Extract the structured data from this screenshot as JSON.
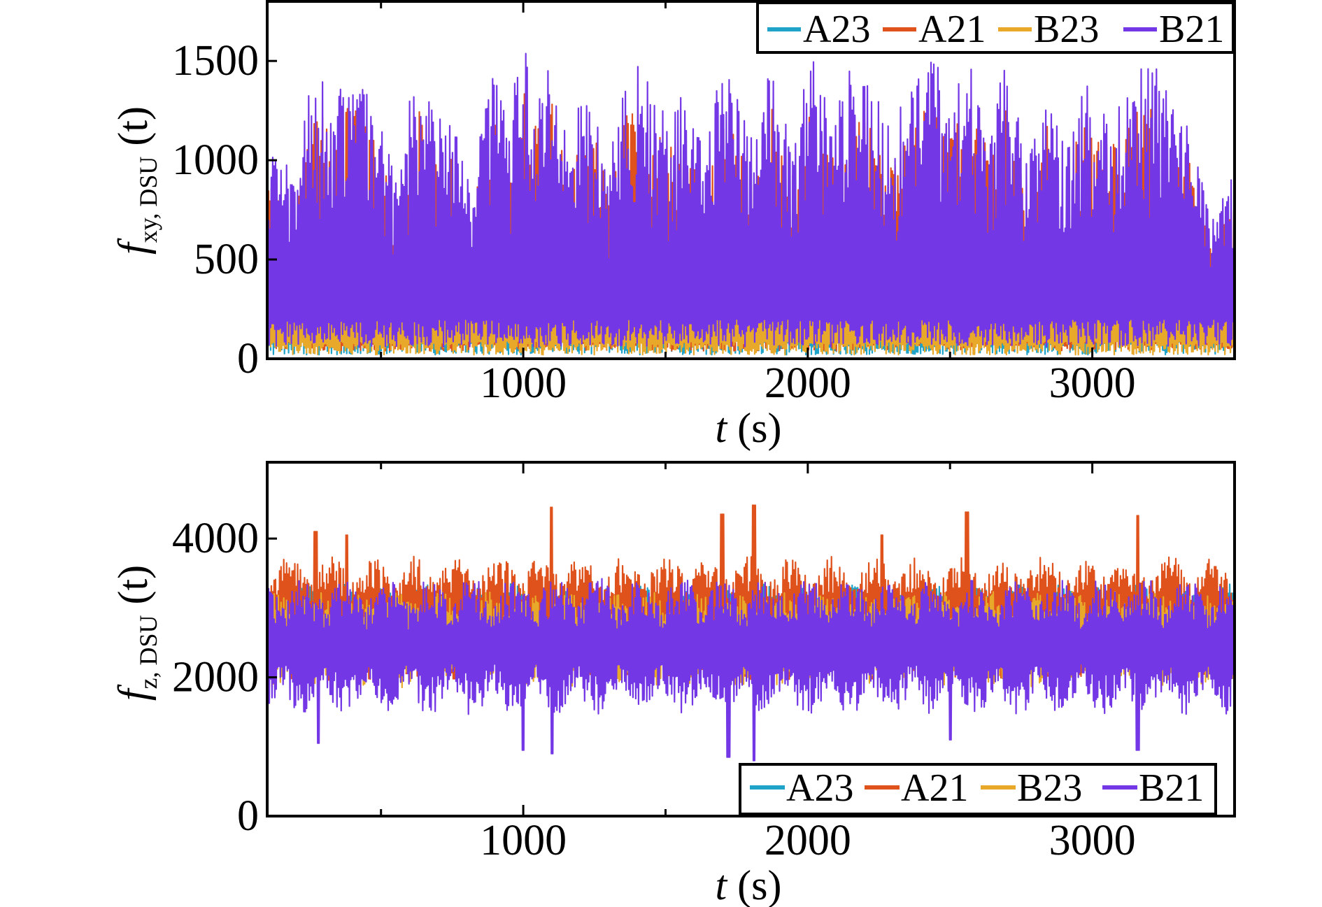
{
  "colors": {
    "A23": "#1fa3c8",
    "A21": "#e0521c",
    "B23": "#e8a82a",
    "B21": "#7437e6"
  },
  "chart_data": [
    {
      "type": "line",
      "title": "",
      "xlabel_var": "t",
      "xlabel_unit": "(s)",
      "ylabel_main": "f",
      "ylabel_sub": "xy, DSU",
      "ylabel_unit": "(t)",
      "xlim": [
        100,
        3500
      ],
      "ylim": [
        0,
        1800
      ],
      "xticks": [
        1000,
        2000,
        3000
      ],
      "yticks": [
        0,
        500,
        1000,
        1500
      ],
      "grid": false,
      "legend_position": "top-right",
      "series": [
        {
          "name": "A23",
          "color_key": "A23",
          "base": 90,
          "lo": 20,
          "hi_ratio": 0.38
        },
        {
          "name": "A21",
          "color_key": "A21",
          "base": 120,
          "lo": 40,
          "hi_ratio": 0.85
        },
        {
          "name": "B23",
          "color_key": "B23",
          "base": 90,
          "lo": 20,
          "hi_ratio": 0.4
        },
        {
          "name": "B21",
          "color_key": "B21",
          "base": 200,
          "lo": 60,
          "hi_ratio": 1.0
        }
      ],
      "envelope_peaks": [
        {
          "t": 120,
          "v": 1100
        },
        {
          "t": 200,
          "v": 900
        },
        {
          "t": 240,
          "v": 1300
        },
        {
          "t": 280,
          "v": 1560
        },
        {
          "t": 330,
          "v": 1250
        },
        {
          "t": 380,
          "v": 1590
        },
        {
          "t": 440,
          "v": 1420
        },
        {
          "t": 500,
          "v": 1200
        },
        {
          "t": 560,
          "v": 900
        },
        {
          "t": 620,
          "v": 1560
        },
        {
          "t": 680,
          "v": 1300
        },
        {
          "t": 720,
          "v": 1250
        },
        {
          "t": 780,
          "v": 1150
        },
        {
          "t": 820,
          "v": 800
        },
        {
          "t": 880,
          "v": 1540
        },
        {
          "t": 940,
          "v": 1200
        },
        {
          "t": 1000,
          "v": 1600
        },
        {
          "t": 1060,
          "v": 1400
        },
        {
          "t": 1100,
          "v": 1520
        },
        {
          "t": 1160,
          "v": 1100
        },
        {
          "t": 1230,
          "v": 1450
        },
        {
          "t": 1300,
          "v": 1000
        },
        {
          "t": 1370,
          "v": 1500
        },
        {
          "t": 1440,
          "v": 1450
        },
        {
          "t": 1500,
          "v": 1250
        },
        {
          "t": 1580,
          "v": 1350
        },
        {
          "t": 1640,
          "v": 1000
        },
        {
          "t": 1700,
          "v": 1570
        },
        {
          "t": 1760,
          "v": 1300
        },
        {
          "t": 1820,
          "v": 1120
        },
        {
          "t": 1870,
          "v": 1500
        },
        {
          "t": 1950,
          "v": 1080
        },
        {
          "t": 2010,
          "v": 1540
        },
        {
          "t": 2080,
          "v": 1250
        },
        {
          "t": 2150,
          "v": 1500
        },
        {
          "t": 2230,
          "v": 1350
        },
        {
          "t": 2300,
          "v": 1200
        },
        {
          "t": 2370,
          "v": 1420
        },
        {
          "t": 2440,
          "v": 1520
        },
        {
          "t": 2510,
          "v": 1350
        },
        {
          "t": 2560,
          "v": 1530
        },
        {
          "t": 2630,
          "v": 1270
        },
        {
          "t": 2700,
          "v": 1500
        },
        {
          "t": 2770,
          "v": 1000
        },
        {
          "t": 2840,
          "v": 1440
        },
        {
          "t": 2900,
          "v": 1100
        },
        {
          "t": 2960,
          "v": 1440
        },
        {
          "t": 3020,
          "v": 1300
        },
        {
          "t": 3090,
          "v": 1270
        },
        {
          "t": 3160,
          "v": 1480
        },
        {
          "t": 3230,
          "v": 1530
        },
        {
          "t": 3300,
          "v": 1300
        },
        {
          "t": 3360,
          "v": 1100
        },
        {
          "t": 3420,
          "v": 700
        },
        {
          "t": 3480,
          "v": 900
        }
      ]
    },
    {
      "type": "line",
      "title": "",
      "xlabel_var": "t",
      "xlabel_unit": "(s)",
      "ylabel_main": "f",
      "ylabel_sub": "z, DSU",
      "ylabel_unit": "(t)",
      "xlim": [
        100,
        3500
      ],
      "ylim": [
        0,
        5100
      ],
      "xticks": [
        1000,
        2000,
        3000
      ],
      "yticks": [
        0,
        2000,
        4000
      ],
      "grid": false,
      "legend_position": "bottom-right",
      "series": [
        {
          "name": "A23",
          "color_key": "A23",
          "mean": 2900,
          "amp": 450
        },
        {
          "name": "A21",
          "color_key": "A21",
          "mean": 2850,
          "amp": 900
        },
        {
          "name": "B23",
          "color_key": "B23",
          "mean": 2550,
          "amp": 700
        },
        {
          "name": "B21",
          "color_key": "B21",
          "mean": 2450,
          "amp": 1000
        }
      ],
      "extreme_highs": [
        {
          "t": 270,
          "v": 4100
        },
        {
          "t": 380,
          "v": 4050
        },
        {
          "t": 1100,
          "v": 4450
        },
        {
          "t": 1700,
          "v": 4350
        },
        {
          "t": 1810,
          "v": 4480
        },
        {
          "t": 2260,
          "v": 4050
        },
        {
          "t": 2560,
          "v": 4380
        },
        {
          "t": 3160,
          "v": 4330
        }
      ],
      "extreme_lows": [
        {
          "t": 280,
          "v": 1050
        },
        {
          "t": 1000,
          "v": 950
        },
        {
          "t": 1100,
          "v": 900
        },
        {
          "t": 1720,
          "v": 850
        },
        {
          "t": 1810,
          "v": 800
        },
        {
          "t": 2500,
          "v": 1100
        },
        {
          "t": 3160,
          "v": 950
        }
      ]
    }
  ]
}
